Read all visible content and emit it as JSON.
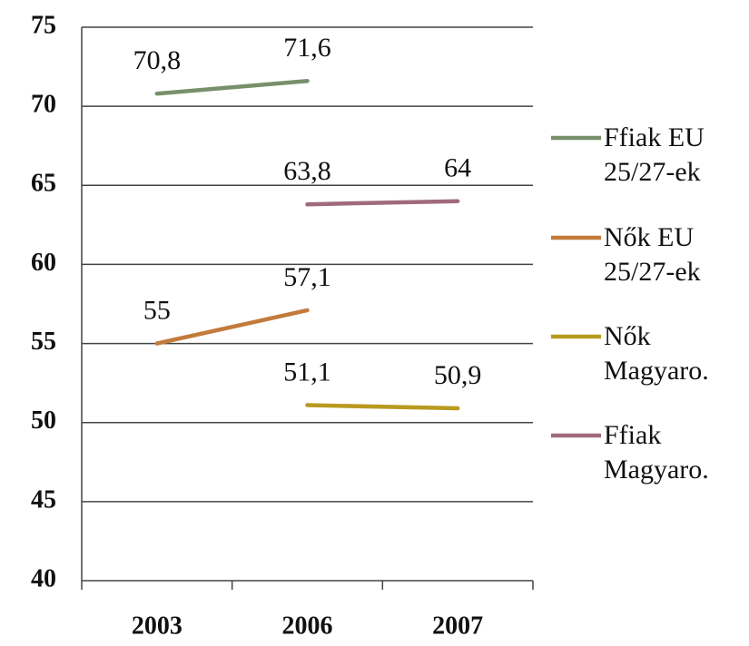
{
  "chart_data": {
    "type": "line",
    "categories": [
      "2003",
      "2006",
      "2007"
    ],
    "series": [
      {
        "name": "Ffiak EU 25/27-ek",
        "color": "#77906a",
        "values": [
          70.8,
          71.6,
          null
        ],
        "value_labels": [
          "70,8",
          "71,6",
          null
        ]
      },
      {
        "name": "Nők EU 25/27-ek",
        "color": "#c27b3b",
        "values": [
          55,
          57.1,
          null
        ],
        "value_labels": [
          "55",
          "57,1",
          null
        ]
      },
      {
        "name": "Nők Magyaro.",
        "color": "#b89a1f",
        "values": [
          null,
          51.1,
          50.9
        ],
        "value_labels": [
          null,
          "51,1",
          "50,9"
        ]
      },
      {
        "name": "Ffiak Magyaro.",
        "color": "#a06a7c",
        "values": [
          null,
          63.8,
          64
        ],
        "value_labels": [
          null,
          "63,8",
          "64"
        ]
      }
    ],
    "ylim": [
      40,
      75
    ],
    "yticks": [
      40,
      45,
      50,
      55,
      60,
      65,
      70,
      75
    ],
    "grid": true,
    "legend": "right"
  }
}
